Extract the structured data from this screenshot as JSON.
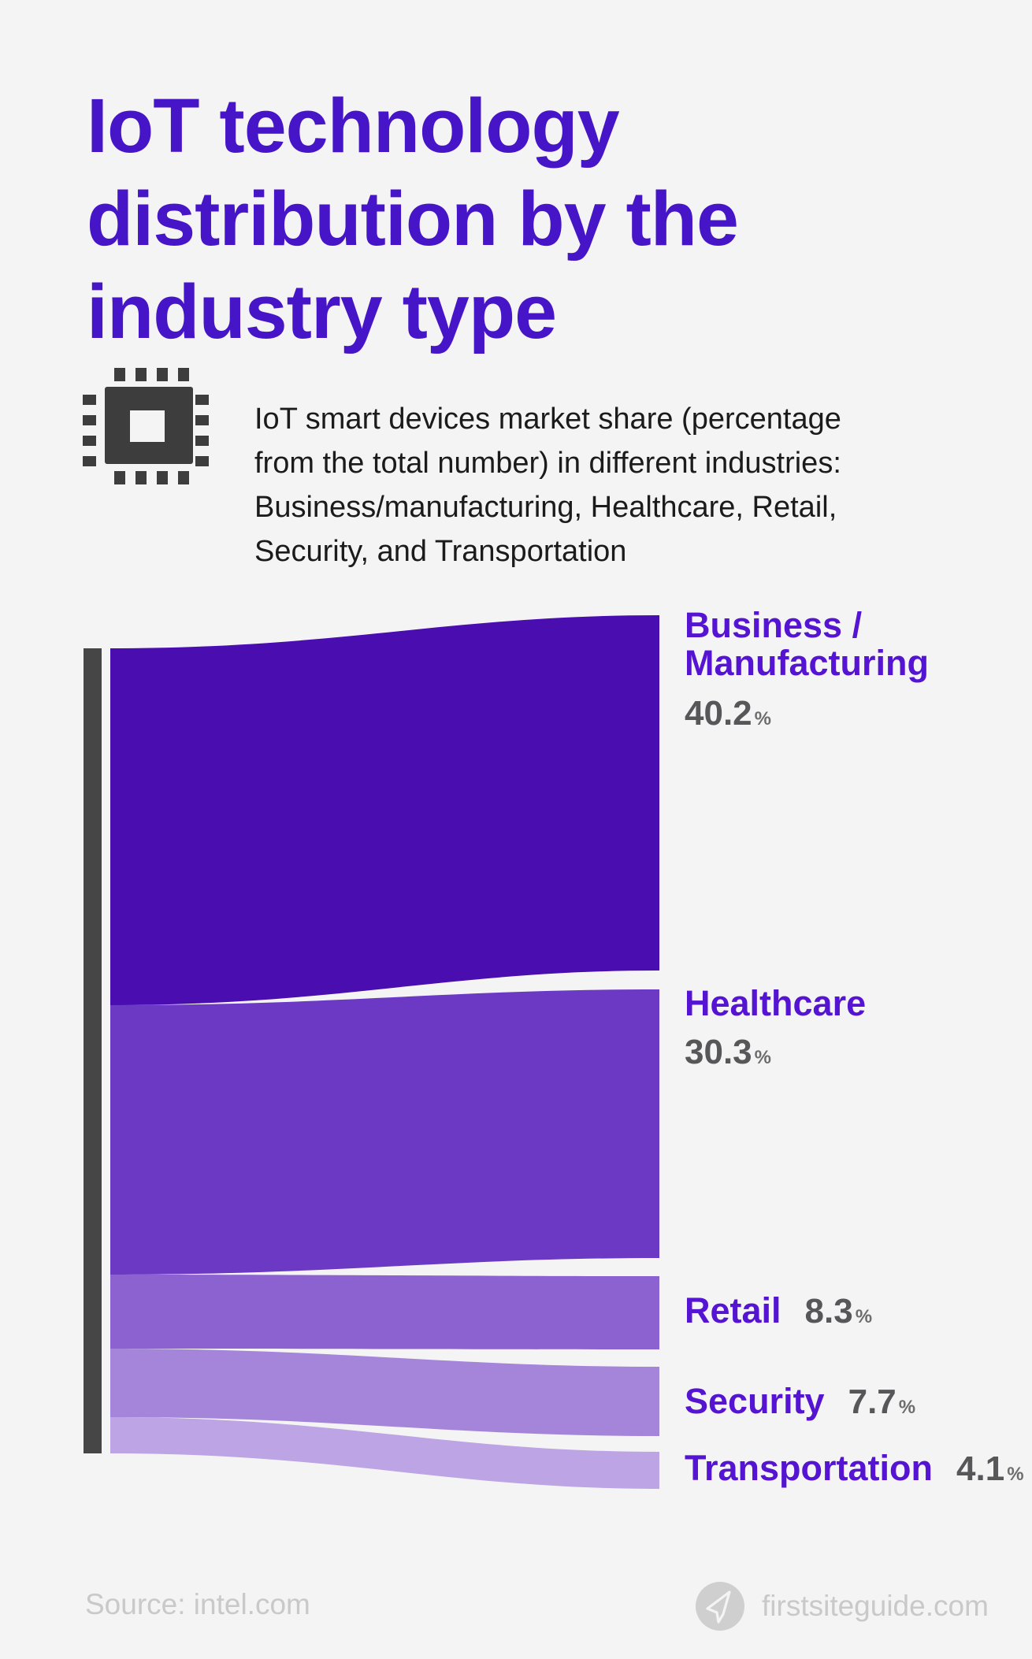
{
  "title": "IoT technology\ndistribution by the\nindustry type",
  "subtitle": "IoT smart devices market share (percentage\nfrom the total number) in different industries:\nBusiness/manufacturing, Healthcare, Retail,\nSecurity, and Transportation",
  "footer": {
    "source": "Source: intel.com",
    "brand": "firstsiteguide.com"
  },
  "colors": {
    "background": "#f5f4f5",
    "title": "#4715c8",
    "label": "#5514d2",
    "percent": "#57575a",
    "percent_sign": "#6d6d6d",
    "bar": "#464646",
    "subtitle_text": "#1b1b1b",
    "footer_text": "#c9c9c9",
    "icon": "#3d3d3d",
    "plane_circle": "#cfcfcf"
  },
  "chart_data": {
    "type": "area",
    "variant": "sankey-flow",
    "title": "IoT technology distribution by the industry type",
    "unit": "%",
    "categories": [
      "Business / Manufacturing",
      "Healthcare",
      "Retail",
      "Security",
      "Transportation"
    ],
    "values": [
      40.2,
      30.3,
      8.3,
      7.7,
      4.1
    ],
    "source": "intel.com",
    "legend_position": "right",
    "segments": [
      {
        "id": "business-manufacturing",
        "label": "Business /\nManufacturing",
        "value": "40.2",
        "unit": "%",
        "color": "#4a0db0"
      },
      {
        "id": "healthcare",
        "label": "Healthcare",
        "value": "30.3",
        "unit": "%",
        "color": "#6b39c3"
      },
      {
        "id": "retail",
        "label": "Retail",
        "value": "8.3",
        "unit": "%",
        "color": "#8b62cf"
      },
      {
        "id": "security",
        "label": "Security",
        "value": "7.7",
        "unit": "%",
        "color": "#a485da"
      },
      {
        "id": "transportation",
        "label": "Transportation",
        "value": "4.1",
        "unit": "%",
        "color": "#bca4e5"
      }
    ]
  }
}
